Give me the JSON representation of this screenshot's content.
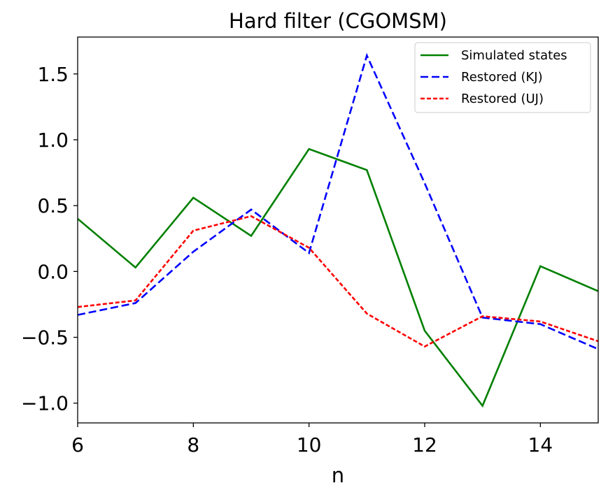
{
  "chart_data": {
    "type": "line",
    "title": "Hard filter (CGOMSM)",
    "xlabel": "n",
    "ylabel": "",
    "xlim": [
      6,
      15
    ],
    "ylim": [
      -1.15,
      1.78
    ],
    "x_ticks": [
      6,
      8,
      10,
      12,
      14
    ],
    "x_tick_labels": [
      "6",
      "8",
      "10",
      "12",
      "14"
    ],
    "y_ticks": [
      1.5,
      1.0,
      0.5,
      0.0,
      -0.5,
      -1.0
    ],
    "y_tick_labels": [
      "1.5",
      "1.0",
      "0.5",
      "0.0",
      "−0.5",
      "−1.0"
    ],
    "grid": false,
    "legend_position": "top-right",
    "x": [
      6,
      7,
      8,
      9,
      10,
      11,
      12,
      13,
      14,
      15
    ],
    "series": [
      {
        "name": "Simulated states",
        "color": "#008000",
        "style": "solid",
        "values": [
          0.4,
          0.03,
          0.56,
          0.27,
          0.93,
          0.77,
          -0.45,
          -1.02,
          0.04,
          -0.15
        ]
      },
      {
        "name": "Restored (KJ)",
        "color": "#0000ff",
        "style": "dashed",
        "values": [
          -0.33,
          -0.24,
          0.15,
          0.47,
          0.14,
          1.64,
          0.67,
          -0.35,
          -0.4,
          -0.59
        ]
      },
      {
        "name": "Restored (UJ)",
        "color": "#ff0000",
        "style": "dotted",
        "values": [
          -0.27,
          -0.22,
          0.31,
          0.42,
          0.18,
          -0.32,
          -0.57,
          -0.34,
          -0.38,
          -0.53
        ]
      }
    ]
  }
}
